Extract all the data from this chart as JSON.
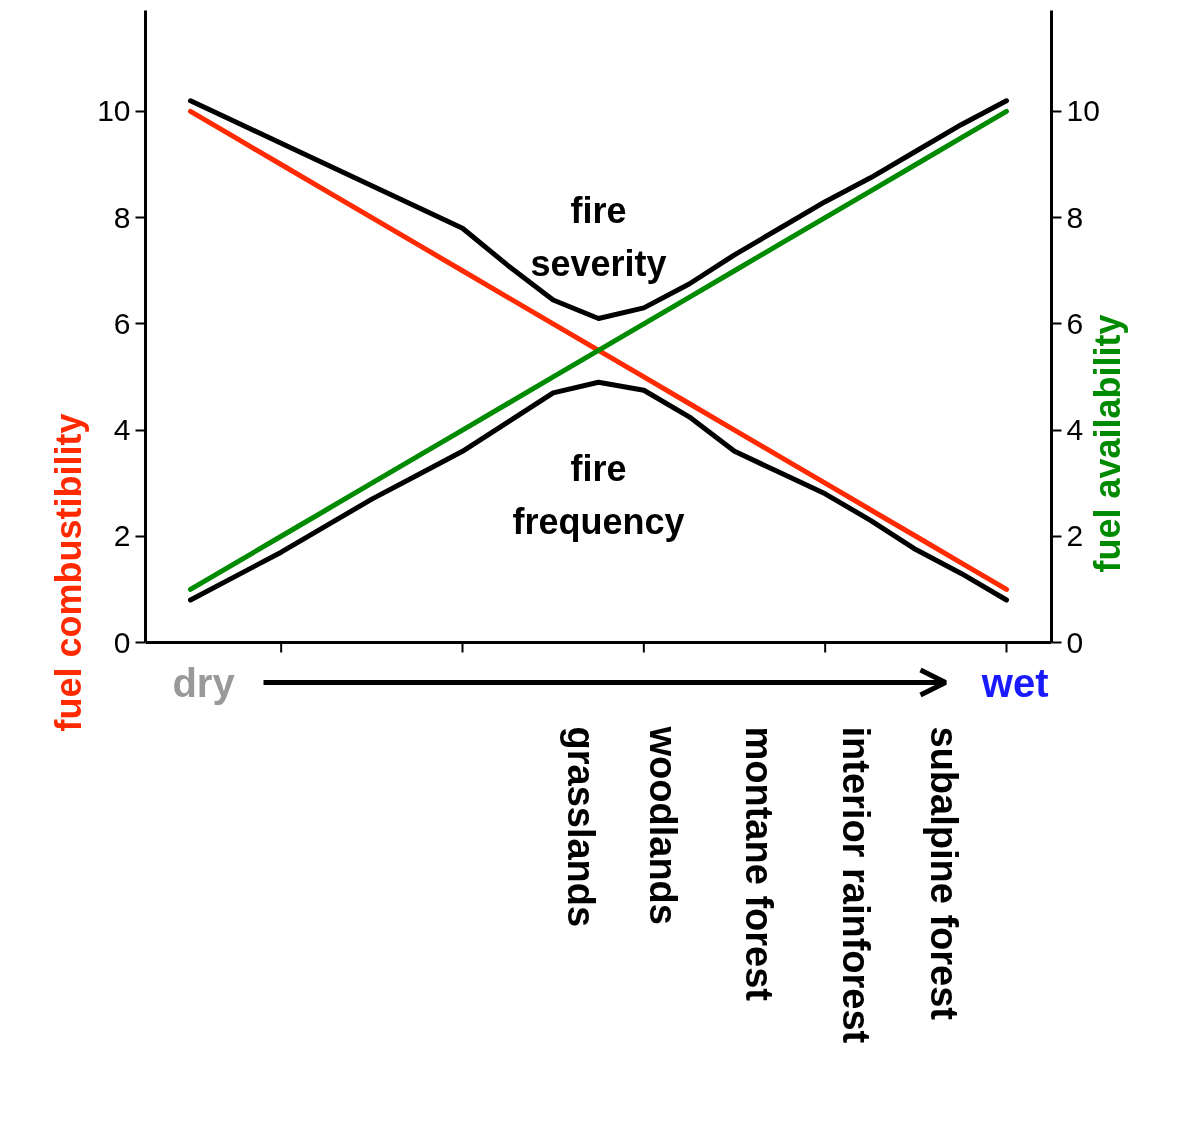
{
  "chart_data": {
    "type": "line",
    "categories": [
      null,
      null,
      null,
      null,
      null,
      null,
      null,
      null,
      null,
      null,
      null,
      null,
      null,
      null,
      null,
      null,
      null,
      null,
      null
    ],
    "ylim": [
      0,
      11.9
    ],
    "yticks": [
      0,
      2,
      4,
      6,
      8,
      10
    ],
    "y2lim": [
      0,
      11.9
    ],
    "y2ticks": [
      0,
      2,
      4,
      6,
      8,
      10
    ],
    "ylabel": "fuel combustibility",
    "y2label": "fuel availability",
    "grid": false,
    "legend": false,
    "marker": "none",
    "line_style": "solid",
    "series": [
      {
        "name": "fire severity",
        "color": "#000000",
        "values": [
          10.2,
          9.8,
          9.4,
          9.0,
          8.6,
          8.2,
          7.8,
          7.1,
          6.45,
          6.1,
          6.3,
          6.75,
          7.3,
          7.8,
          8.3,
          8.75,
          9.25,
          9.75,
          10.2
        ]
      },
      {
        "name": "fire frequency",
        "color": "#000000",
        "values": [
          0.8,
          1.25,
          1.7,
          2.2,
          2.7,
          3.15,
          3.6,
          4.15,
          4.7,
          4.9,
          4.75,
          4.25,
          3.6,
          3.2,
          2.8,
          2.3,
          1.75,
          1.3,
          0.8
        ]
      },
      {
        "color": "#ff2a00",
        "values": [
          10,
          9.5,
          9,
          8.5,
          8,
          7.5,
          7,
          6.5,
          6,
          5.5,
          5,
          4.5,
          4,
          3.5,
          3,
          2.5,
          2,
          1.5,
          1
        ]
      },
      {
        "color": "#008a00",
        "axis": "y2",
        "values": [
          1,
          1.5,
          2,
          2.5,
          3,
          3.5,
          4,
          4.5,
          5,
          5.5,
          6,
          6.5,
          7,
          7.5,
          8,
          8.5,
          9,
          9.5,
          10
        ]
      }
    ],
    "annotations": [
      "dry",
      "wet",
      "grasslands",
      "woodlands",
      "montane forest",
      "interior rainforest",
      "subalpine  forest"
    ]
  }
}
